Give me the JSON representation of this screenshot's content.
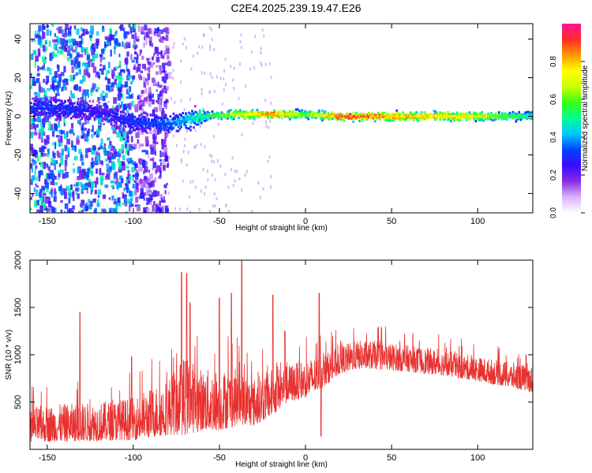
{
  "title": "C2E4.2025.239.19.47.E26",
  "chart_data": [
    {
      "type": "heatmap",
      "name": "spectrogram",
      "xlabel": "Height of straight line (km)",
      "ylabel": "Frequency (Hz)",
      "xlim": [
        -160,
        132
      ],
      "ylim": [
        -50,
        48
      ],
      "xticks": [
        -150,
        -100,
        -50,
        0,
        50,
        100
      ],
      "yticks": [
        -40,
        -20,
        0,
        20,
        40
      ],
      "colorbar": {
        "label": "Normalized spectral amplitude",
        "range": [
          0.0,
          1.0
        ],
        "ticks": [
          0.0,
          0.2,
          0.4,
          0.6,
          0.8
        ],
        "tick_labels": [
          "0.0",
          "0.2",
          "0.4",
          "0.6",
          "0.8"
        ],
        "colors": [
          "#ffffff",
          "#d9b3ff",
          "#8a2be2",
          "#3b0aff",
          "#0044ff",
          "#00c8ff",
          "#00ff90",
          "#39ff14",
          "#c8ff00",
          "#ffff00",
          "#ff9900",
          "#ff2a2a",
          "#ff1493"
        ]
      },
      "ridge": [
        {
          "x": -140,
          "center": 4,
          "amp": 0.3
        },
        {
          "x": -120,
          "center": 2,
          "amp": 0.25
        },
        {
          "x": -100,
          "center": -3,
          "amp": 0.3
        },
        {
          "x": -80,
          "center": -4,
          "amp": 0.35
        },
        {
          "x": -60,
          "center": 0,
          "amp": 0.5
        },
        {
          "x": -40,
          "center": 1,
          "amp": 0.7
        },
        {
          "x": -20,
          "center": 1,
          "amp": 0.85
        },
        {
          "x": 0,
          "center": 1,
          "amp": 0.6
        },
        {
          "x": 20,
          "center": 0,
          "amp": 0.9
        },
        {
          "x": 40,
          "center": 0,
          "amp": 0.85
        },
        {
          "x": 60,
          "center": 0,
          "amp": 0.8
        },
        {
          "x": 80,
          "center": 0,
          "amp": 0.75
        },
        {
          "x": 100,
          "center": 0,
          "amp": 0.7
        },
        {
          "x": 120,
          "center": 0,
          "amp": 0.55
        },
        {
          "x": 132,
          "center": 0,
          "amp": 0.5
        }
      ]
    },
    {
      "type": "line",
      "name": "snr",
      "xlabel": "Height of straight line (km)",
      "ylabel": "SNR (10 * v/v)",
      "xlim": [
        -160,
        132
      ],
      "ylim": [
        0,
        2000
      ],
      "xticks": [
        -150,
        -100,
        -50,
        0,
        50,
        100
      ],
      "yticks": [
        500,
        1000,
        1500,
        2000
      ],
      "color": "#e8312f",
      "envelope": [
        {
          "x": -160,
          "low": 80,
          "high": 450
        },
        {
          "x": -140,
          "low": 80,
          "high": 480
        },
        {
          "x": -120,
          "low": 90,
          "high": 500
        },
        {
          "x": -100,
          "low": 100,
          "high": 550
        },
        {
          "x": -80,
          "low": 150,
          "high": 750
        },
        {
          "x": -70,
          "low": 150,
          "high": 1000
        },
        {
          "x": -60,
          "low": 200,
          "high": 850
        },
        {
          "x": -50,
          "low": 200,
          "high": 850
        },
        {
          "x": -40,
          "low": 250,
          "high": 850
        },
        {
          "x": -30,
          "low": 250,
          "high": 750
        },
        {
          "x": -20,
          "low": 350,
          "high": 850
        },
        {
          "x": -10,
          "low": 500,
          "high": 900
        },
        {
          "x": 0,
          "low": 550,
          "high": 950
        },
        {
          "x": 10,
          "low": 650,
          "high": 1000
        },
        {
          "x": 20,
          "low": 800,
          "high": 1100
        },
        {
          "x": 30,
          "low": 850,
          "high": 1150
        },
        {
          "x": 40,
          "low": 850,
          "high": 1150
        },
        {
          "x": 60,
          "low": 820,
          "high": 1100
        },
        {
          "x": 80,
          "low": 780,
          "high": 1050
        },
        {
          "x": 100,
          "low": 720,
          "high": 980
        },
        {
          "x": 120,
          "low": 650,
          "high": 920
        },
        {
          "x": 132,
          "low": 600,
          "high": 880
        }
      ],
      "spikes": [
        {
          "x": -131,
          "y": 1450
        },
        {
          "x": -101,
          "y": 980
        },
        {
          "x": -72,
          "y": 1870
        },
        {
          "x": -69,
          "y": 1860
        },
        {
          "x": -67,
          "y": 1550
        },
        {
          "x": -50,
          "y": 1600
        },
        {
          "x": -43,
          "y": 1650
        },
        {
          "x": -37,
          "y": 2000
        },
        {
          "x": -19,
          "y": 1630
        },
        {
          "x": -12,
          "y": 1250
        },
        {
          "x": 8,
          "y": 1650
        },
        {
          "x": 9,
          "y": 140
        }
      ]
    }
  ]
}
